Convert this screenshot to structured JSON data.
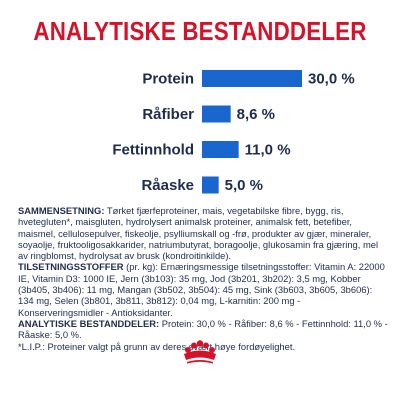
{
  "header": {
    "title": "ANALYTISKE BESTANDDELER"
  },
  "chart_data": {
    "type": "bar",
    "orientation": "horizontal",
    "categories": [
      "Protein",
      "Råfiber",
      "Fettinnhold",
      "Råaske"
    ],
    "values": [
      30.0,
      8.6,
      11.0,
      5.0
    ],
    "value_labels": [
      "30,0 %",
      "8,6 %",
      "11,0 %",
      "5,0 %"
    ],
    "xlim": [
      0,
      30
    ],
    "grid": false,
    "legend": "none",
    "colors": {
      "bar": "#1a66cf",
      "text": "#1f2c4d"
    }
  },
  "composition": {
    "heading": "SAMMENSETNING:",
    "text": " Tørket fjærfeproteiner, mais, vegetabilske fibre, bygg, ris, hvetegluten*, maisgluten, hydrolysert animalsk proteiner, animalsk fett, betefiber, maismel, cellulosepulver, fiskeolje, psylliumskall og -frø, produkter av gjær, mineraler, soyaolje, fruktooligosakkarider, natriumbutyrat, boragoolje, glukosamin fra gjæring, mel av ringblomst, hydrolysat av brusk (kondroitinkilde).",
    "additives_heading": "TILSETNINGSSTOFFER",
    "additives_text": " (pr. kg): Ernæringsmessige tilsetningsstoffer: Vitamin A: 22000 IE, Vitamin D3: 1000 IE, Jern (3b103): 35 mg, Jod (3b201, 3b202): 3,5 mg, Kobber (3b405, 3b406): 11 mg, Mangan (3b502, 3b504): 45 mg, Sink (3b603, 3b605, 3b606): 134 mg, Selen (3b801, 3b811, 3b812): 0,04 mg, L-karnitin: 200 mg - Konserveringsmidler - Antioksidanter.",
    "analytical_heading": "ANALYTISKE BESTANDDELER:",
    "analytical_text": " Protein: 30,0 % - Råfiber: 8,6 % - Fettinnhold: 11,0 % - Råaske: 5,0 %.",
    "footnote": "*L.I.P.: Proteiner valgt på grunn av deres svært høye fordøyelighet."
  },
  "brand": {
    "logo_icon": "royal-canin-crown-icon",
    "logo_color": "#d4132a"
  }
}
